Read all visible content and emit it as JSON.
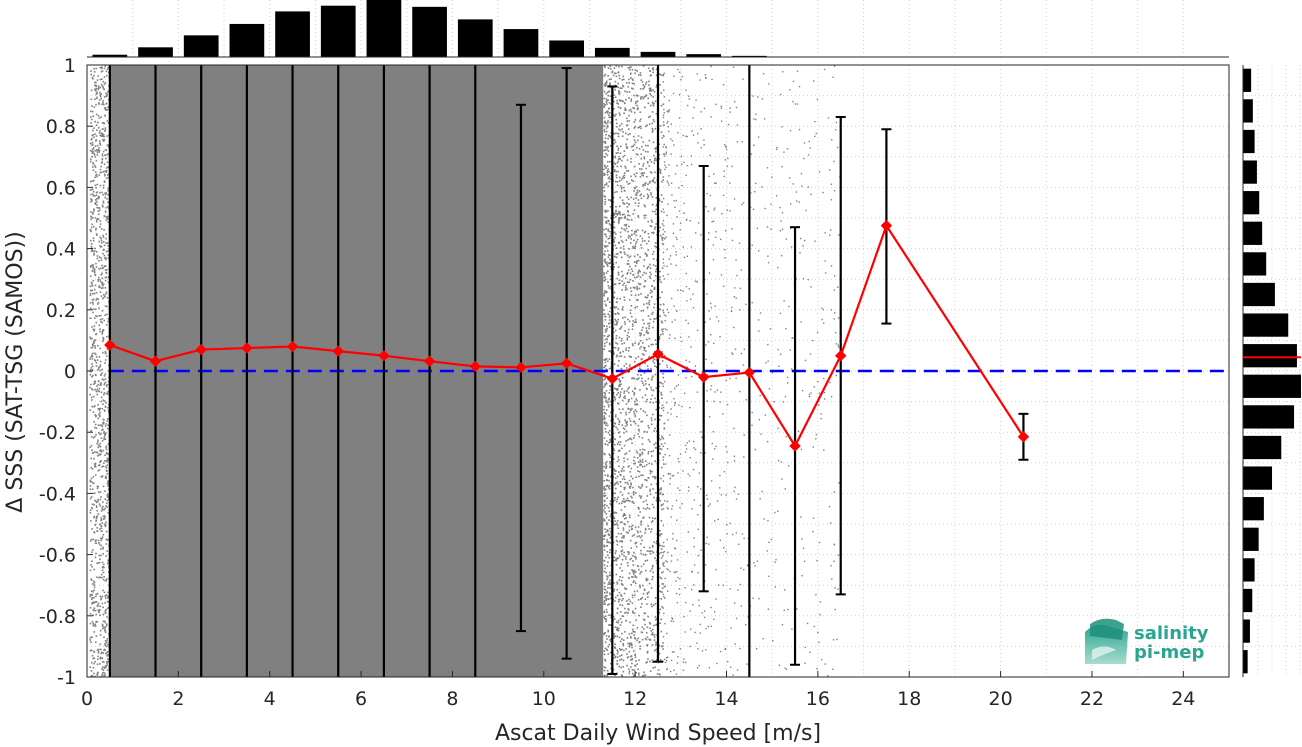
{
  "chart_data": {
    "type": "scatter",
    "xlabel": "Ascat Daily Wind Speed [m/s]",
    "ylabel": "Δ SSS (SAT-TSG (SAMOS))",
    "xlim": [
      0,
      25
    ],
    "ylim": [
      -1,
      1
    ],
    "xticks": [
      0,
      2,
      4,
      6,
      8,
      10,
      12,
      14,
      16,
      18,
      20,
      22,
      24
    ],
    "yticks": [
      1,
      0.8,
      0.6,
      0.4,
      0.2,
      0,
      -0.2,
      -0.4,
      -0.6,
      -0.8,
      -1
    ],
    "ytick_labels": [
      "1",
      "0.8",
      "0.6",
      "0.4",
      "0.2",
      "0",
      "-0.2",
      "-0.4",
      "-0.6",
      "-0.8",
      "-1"
    ],
    "grid": true,
    "scatter_color": "#808080",
    "mean_line_color": "#ff0000",
    "zero_line_color": "#0000ff",
    "scatter_extent": [
      {
        "xmin": 0,
        "xmax": 12.6,
        "density": "dense"
      },
      {
        "xmin": 12.6,
        "xmax": 16.5,
        "density": "sparse"
      }
    ],
    "bins": [
      {
        "x": 0.5,
        "mean": 0.085,
        "low": -1.0,
        "high": 1.0
      },
      {
        "x": 1.5,
        "mean": 0.032,
        "low": -1.0,
        "high": 1.0
      },
      {
        "x": 2.5,
        "mean": 0.07,
        "low": -1.0,
        "high": 1.0
      },
      {
        "x": 3.5,
        "mean": 0.075,
        "low": -1.0,
        "high": 1.0
      },
      {
        "x": 4.5,
        "mean": 0.08,
        "low": -1.0,
        "high": 1.0
      },
      {
        "x": 5.5,
        "mean": 0.065,
        "low": -1.0,
        "high": 1.0
      },
      {
        "x": 6.5,
        "mean": 0.05,
        "low": -1.0,
        "high": 1.0
      },
      {
        "x": 7.5,
        "mean": 0.032,
        "low": -1.0,
        "high": 1.0
      },
      {
        "x": 8.5,
        "mean": 0.015,
        "low": -1.0,
        "high": 1.0
      },
      {
        "x": 9.5,
        "mean": 0.012,
        "low": -0.85,
        "high": 0.87
      },
      {
        "x": 10.5,
        "mean": 0.025,
        "low": -0.94,
        "high": 0.99
      },
      {
        "x": 11.5,
        "mean": -0.025,
        "low": -0.99,
        "high": 0.93
      },
      {
        "x": 12.5,
        "mean": 0.055,
        "low": -0.95,
        "high": 1.0
      },
      {
        "x": 13.5,
        "mean": -0.02,
        "low": -0.72,
        "high": 0.67
      },
      {
        "x": 14.5,
        "mean": -0.005,
        "low": -1.0,
        "high": 1.0
      },
      {
        "x": 15.5,
        "mean": -0.245,
        "low": -0.96,
        "high": 0.47
      },
      {
        "x": 16.5,
        "mean": 0.05,
        "low": -0.73,
        "high": 0.83
      },
      {
        "x": 17.5,
        "mean": 0.475,
        "low": 0.155,
        "high": 0.79
      },
      {
        "x": 20.5,
        "mean": -0.215,
        "low": -0.29,
        "high": -0.14
      }
    ],
    "x_histogram": {
      "bins": [
        0.5,
        1.5,
        2.5,
        3.5,
        4.5,
        5.5,
        6.5,
        7.5,
        8.5,
        9.5,
        10.5,
        11.5,
        12.5,
        13.5,
        14.5
      ],
      "relative_counts": [
        0.04,
        0.17,
        0.38,
        0.58,
        0.8,
        0.9,
        1.0,
        0.88,
        0.66,
        0.49,
        0.29,
        0.16,
        0.09,
        0.05,
        0.02
      ]
    },
    "y_histogram": {
      "bins": [
        0.95,
        0.85,
        0.75,
        0.65,
        0.55,
        0.45,
        0.35,
        0.25,
        0.15,
        0.05,
        -0.05,
        -0.15,
        -0.25,
        -0.35,
        -0.45,
        -0.55,
        -0.65,
        -0.75,
        -0.85,
        -0.95
      ],
      "relative_counts": [
        0.14,
        0.17,
        0.2,
        0.24,
        0.28,
        0.33,
        0.4,
        0.55,
        0.78,
        0.93,
        1.0,
        0.88,
        0.66,
        0.5,
        0.36,
        0.27,
        0.2,
        0.16,
        0.12,
        0.08
      ],
      "mean_marker": 0.045
    }
  },
  "logo": {
    "line1": "salinity",
    "line2": "pi-mep"
  }
}
